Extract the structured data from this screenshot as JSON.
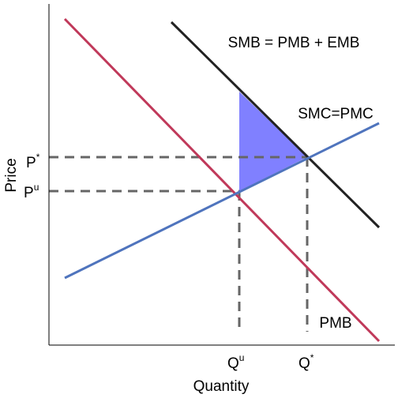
{
  "axes": {
    "y_label": "Price",
    "x_label": "Quantity"
  },
  "y_ticks": [
    {
      "base": "P",
      "sup": "*"
    },
    {
      "base": "P",
      "sup": "u"
    }
  ],
  "x_ticks": [
    {
      "base": "Q",
      "sup": "u"
    },
    {
      "base": "Q",
      "sup": "*"
    }
  ],
  "curves": {
    "smb": "SMB = PMB + EMB",
    "smc": "SMC=PMC",
    "pmb": "PMB"
  }
}
